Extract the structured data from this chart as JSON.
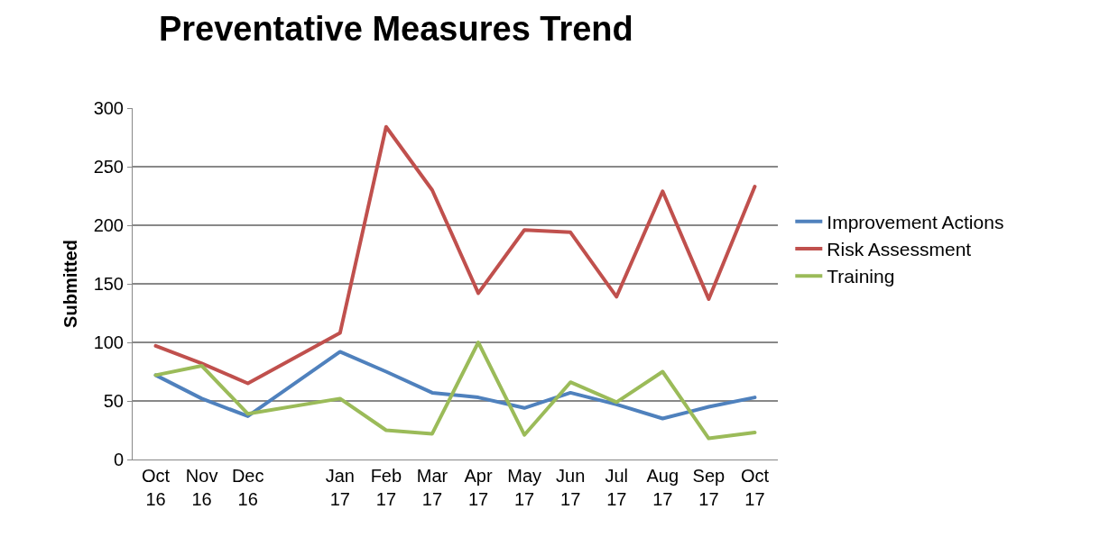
{
  "chart_data": {
    "type": "line",
    "title": "Preventative Measures Trend",
    "ylabel": "Submitted",
    "categories": [
      "Oct 16",
      "Nov 16",
      "Dec 16",
      null,
      "Jan 17",
      "Feb 17",
      "Mar 17",
      "Apr 17",
      "May 17",
      "Jun 17",
      "Jul 17",
      "Aug 17",
      "Sep 17",
      "Oct 17"
    ],
    "series": [
      {
        "name": "Improvement Actions",
        "color": "#4f81bd",
        "values": [
          72,
          52,
          37,
          null,
          92,
          75,
          57,
          53,
          44,
          57,
          47,
          35,
          45,
          53
        ]
      },
      {
        "name": "Risk Assessment",
        "color": "#c0504d",
        "values": [
          97,
          82,
          65,
          null,
          108,
          284,
          230,
          142,
          196,
          194,
          139,
          229,
          137,
          233
        ]
      },
      {
        "name": "Training",
        "color": "#9bbb59",
        "values": [
          72,
          80,
          39,
          null,
          52,
          25,
          22,
          100,
          21,
          66,
          49,
          75,
          18,
          23
        ]
      }
    ],
    "ylim": [
      0,
      300
    ],
    "yticks": [
      0,
      50,
      100,
      150,
      200,
      250,
      300
    ],
    "grid": "y",
    "legend": "right",
    "marker": "none",
    "line_style": "solid"
  }
}
